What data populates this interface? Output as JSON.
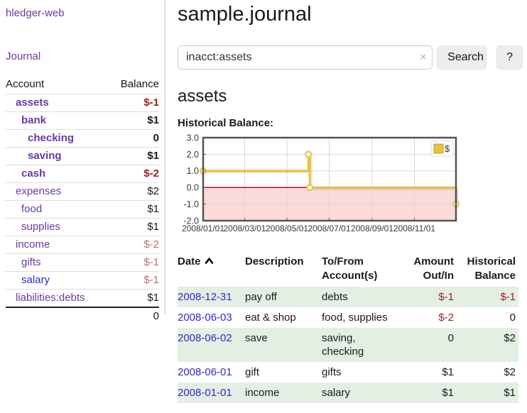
{
  "app": {
    "title": "hledger-web"
  },
  "colors": {
    "purple_link": "#6a3aa2",
    "blue_link": "#2b2bd5",
    "negative_strong": "#9e1b1b",
    "negative_muted": "#b96f6f",
    "row_stripe_green": "#e3efe3",
    "button_bg": "#ededed",
    "input_border": "#cccccc",
    "divider": "#cccccc"
  },
  "sidebar": {
    "journal_link": "Journal",
    "accounts_table": {
      "headers": {
        "account": "Account",
        "balance": "Balance"
      },
      "rows": [
        {
          "account": "assets",
          "level": 0,
          "bold": true,
          "link_style": "purple",
          "balance": "$-1",
          "balance_style": "neg-strong"
        },
        {
          "account": "bank",
          "level": 1,
          "bold": true,
          "link_style": "purple",
          "balance": "$1",
          "balance_style": "normal"
        },
        {
          "account": "checking",
          "level": 2,
          "bold": true,
          "link_style": "purple",
          "balance": "0",
          "balance_style": "normal"
        },
        {
          "account": "saving",
          "level": 2,
          "bold": true,
          "link_style": "purple",
          "balance": "$1",
          "balance_style": "normal"
        },
        {
          "account": "cash",
          "level": 1,
          "bold": true,
          "link_style": "purple",
          "balance": "$-2",
          "balance_style": "neg-strong"
        },
        {
          "account": "expenses",
          "level": 0,
          "bold": false,
          "link_style": "purple",
          "balance": "$2",
          "balance_style": "normal"
        },
        {
          "account": "food",
          "level": 1,
          "bold": false,
          "link_style": "purple",
          "balance": "$1",
          "balance_style": "normal"
        },
        {
          "account": "supplies",
          "level": 1,
          "bold": false,
          "link_style": "purple",
          "balance": "$1",
          "balance_style": "normal"
        },
        {
          "account": "income",
          "level": 0,
          "bold": false,
          "link_style": "purple",
          "balance": "$-2",
          "balance_style": "neg-muted"
        },
        {
          "account": "gifts",
          "level": 1,
          "bold": false,
          "link_style": "purple",
          "balance": "$-1",
          "balance_style": "neg-muted"
        },
        {
          "account": "salary",
          "level": 1,
          "bold": false,
          "link_style": "blue",
          "balance": "$-1",
          "balance_style": "neg-muted"
        },
        {
          "account": "liabilities:debts",
          "level": 0,
          "bold": false,
          "link_style": "purple",
          "balance": "$1",
          "balance_style": "normal"
        }
      ],
      "total": "0"
    }
  },
  "main": {
    "title": "sample.journal",
    "search": {
      "value": "inacct:assets",
      "clear_icon": "×",
      "button": "Search",
      "help_button": "?"
    },
    "account_heading": "assets",
    "chart_label": "Historical Balance:"
  },
  "chart_data": {
    "type": "line",
    "subtype": "step",
    "title": "Historical Balance:",
    "series": [
      {
        "name": "$",
        "color": "#e7c23d",
        "points": [
          {
            "date": "2008-01-01",
            "value": 1
          },
          {
            "date": "2008-06-01",
            "value": 2
          },
          {
            "date": "2008-06-03",
            "value": 0
          },
          {
            "date": "2008-12-31",
            "value": -1
          }
        ]
      }
    ],
    "x_range": [
      "2008-01-01",
      "2008-12-31"
    ],
    "x_ticks": [
      "2008/01/01",
      "2008/03/01",
      "2008/05/01",
      "2008/07/01",
      "2008/09/01",
      "2008/11/01"
    ],
    "y_ticks": [
      3.0,
      2.0,
      1.0,
      0.0,
      -1.0,
      -2.0
    ],
    "ylim": [
      -2,
      3
    ],
    "grid": true,
    "legend": {
      "label": "$",
      "position": "top-right"
    },
    "negative_region_fill": "#fbdada",
    "zero_line_color": "#a00000",
    "grid_color": "#d8d8d8",
    "border_color": "#545454",
    "marker_fill": "#ffffff"
  },
  "register_table": {
    "sort": {
      "column": "Date",
      "direction": "asc"
    },
    "headers": {
      "date": "Date",
      "description": "Description",
      "accounts": "To/From Account(s)",
      "amount": "Amount Out/In",
      "balance": "Historical Balance"
    },
    "rows": [
      {
        "date": "2008-12-31",
        "description": "pay off",
        "accounts": [
          "debts"
        ],
        "amount": "$-1",
        "amount_negative": true,
        "balance": "$-1",
        "balance_negative": true
      },
      {
        "date": "2008-06-03",
        "description": "eat & shop",
        "accounts": [
          "food, supplies"
        ],
        "amount": "$-2",
        "amount_negative": true,
        "balance": "0",
        "balance_negative": false
      },
      {
        "date": "2008-06-02",
        "description": "save",
        "accounts": [
          "saving,",
          "checking"
        ],
        "amount": "0",
        "amount_negative": false,
        "balance": "$2",
        "balance_negative": false
      },
      {
        "date": "2008-06-01",
        "description": "gift",
        "accounts": [
          "gifts"
        ],
        "amount": "$1",
        "amount_negative": false,
        "balance": "$2",
        "balance_negative": false
      },
      {
        "date": "2008-01-01",
        "description": "income",
        "accounts": [
          "salary"
        ],
        "amount": "$1",
        "amount_negative": false,
        "balance": "$1",
        "balance_negative": false
      }
    ]
  }
}
